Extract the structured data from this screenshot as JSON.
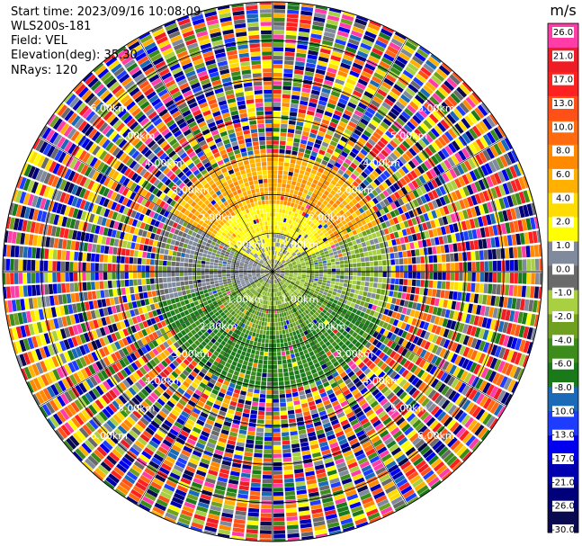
{
  "header": {
    "start_time": "Start time: 2023/09/16 10:08:09",
    "instrument": "WLS200s-181",
    "field": "Field: VEL",
    "elevation": "Elevation(deg): 35.30",
    "nrays": "NRays: 120"
  },
  "chart_data": {
    "type": "heatmap",
    "projection": "polar-ppi",
    "n_rays": 120,
    "max_range_km": 7.0,
    "range_rings_km": [
      1.0,
      2.0,
      3.0,
      4.0,
      5.0,
      6.0,
      7.0
    ],
    "range_ring_labels": [
      "1.00km",
      "2.00km",
      "3.00km",
      "4.00km",
      "5.00km",
      "6.00km"
    ],
    "grid": true,
    "colorbar": {
      "unit": "m/s",
      "ticks": [
        "26.0",
        "21.0",
        "17.0",
        "13.0",
        "10.0",
        "8.0",
        "6.0",
        "4.0",
        "2.0",
        "1.0",
        "0.0",
        "-1.0",
        "-2.0",
        "-4.0",
        "-6.0",
        "-8.0",
        "-10.0",
        "-13.0",
        "-17.0",
        "-21.0",
        "-26.0",
        "-30.0"
      ],
      "colors": [
        "#ff3ca8",
        "#ee1c24",
        "#ff2020",
        "#ff5018",
        "#ff6a10",
        "#ff8a00",
        "#ffb000",
        "#ffdc00",
        "#ffff00",
        "#7f8a9c",
        "#6a6a6a",
        "#a8d040",
        "#70a020",
        "#3c8c1c",
        "#1a7a1a",
        "#1a6ab8",
        "#1e3cff",
        "#0000ee",
        "#0000b0",
        "#00007a",
        "#0a0a50"
      ]
    },
    "velocity_pattern": "near-field gray; northern sector positive 2-6 m/s (yellow/orange); southern sector negative -2 to -6 m/s (green); beyond ~3 km noisy values across full scale"
  }
}
